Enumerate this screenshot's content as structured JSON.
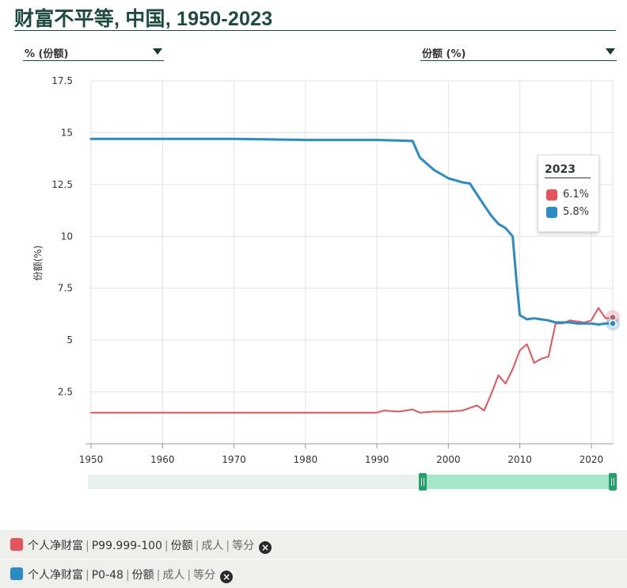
{
  "title": "财富不平等, 中国, 1950-2023",
  "selectors": {
    "left": "% (份额)",
    "right": "份额 (%)"
  },
  "tooltip": {
    "year": "2023",
    "items": [
      {
        "value": "6.1%",
        "color": "#e4545c"
      },
      {
        "value": "5.8%",
        "color": "#2a8cc4"
      }
    ]
  },
  "legend": [
    {
      "color": "#e4545c",
      "parts": [
        "个人净财富",
        "P99.999-100",
        "份额",
        "成人",
        "等分"
      ]
    },
    {
      "color": "#2a8cc4",
      "parts": [
        "个人净财富",
        "P0-48",
        "份额",
        "成人",
        "等分"
      ]
    }
  ],
  "chart_data": {
    "type": "line",
    "ylabel": "份额(%)",
    "xlabel": "",
    "xlim": [
      1950,
      2023
    ],
    "ylim": [
      0,
      17.5
    ],
    "yticks": [
      "2.5",
      "5",
      "7.5",
      "10",
      "12.5",
      "15",
      "17.5"
    ],
    "xticks": [
      "1950",
      "1960",
      "1970",
      "1980",
      "1990",
      "2000",
      "2010",
      "2020"
    ],
    "grid": true,
    "series": [
      {
        "color": "#e4545c",
        "x": [
          1950,
          1960,
          1970,
          1980,
          1990,
          1991,
          1993,
          1995,
          1996,
          1998,
          2000,
          2002,
          2004,
          2005,
          2006,
          2007,
          2008,
          2009,
          2010,
          2011,
          2012,
          2013,
          2014,
          2015,
          2016,
          2017,
          2018,
          2019,
          2020,
          2021,
          2022,
          2023
        ],
        "y": [
          1.5,
          1.5,
          1.5,
          1.5,
          1.5,
          1.6,
          1.55,
          1.65,
          1.5,
          1.55,
          1.55,
          1.6,
          1.85,
          1.6,
          2.4,
          3.3,
          2.9,
          3.6,
          4.5,
          4.8,
          3.9,
          4.1,
          4.2,
          5.8,
          5.8,
          5.95,
          5.9,
          5.85,
          5.95,
          6.55,
          6.05,
          6.1
        ]
      },
      {
        "color": "#2a8cc4",
        "x": [
          1950,
          1960,
          1970,
          1980,
          1990,
          1995,
          1996,
          1997,
          1998,
          2000,
          2001,
          2002,
          2003,
          2005,
          2006,
          2007,
          2008,
          2009,
          2009.5,
          2010,
          2011,
          2012,
          2013,
          2014,
          2015,
          2016,
          2017,
          2018,
          2019,
          2020,
          2021,
          2022,
          2023
        ],
        "y": [
          14.7,
          14.7,
          14.7,
          14.65,
          14.65,
          14.6,
          13.8,
          13.5,
          13.2,
          12.8,
          12.7,
          12.6,
          12.55,
          11.5,
          11.0,
          10.6,
          10.4,
          10.0,
          8.0,
          6.2,
          6.0,
          6.05,
          6.0,
          5.95,
          5.85,
          5.85,
          5.85,
          5.8,
          5.8,
          5.8,
          5.75,
          5.8,
          5.8
        ]
      }
    ]
  }
}
